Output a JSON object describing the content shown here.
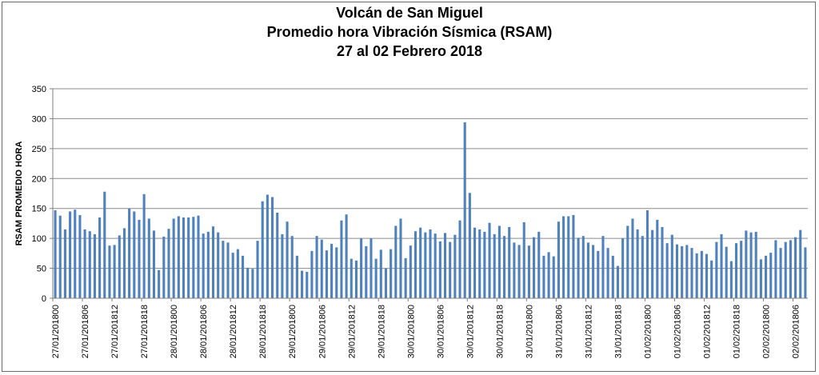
{
  "chart_data": {
    "type": "bar",
    "title": [
      "Volcán de San Miguel",
      "Promedio hora Vibración Sísmica (RSAM)",
      "27 al 02 Febrero  2018"
    ],
    "xlabel": "",
    "ylabel": "RSAM PROMEDIO HORA",
    "ylim": [
      0,
      350
    ],
    "yticks": [
      0,
      50,
      100,
      150,
      200,
      250,
      300,
      350
    ],
    "grid": true,
    "bar_color": "#4f81bd",
    "grid_color": "#8c8c8c",
    "xtick_labels": [
      "27/01/201800",
      "27/01/201806",
      "27/01/201812",
      "27/01/201818",
      "28/01/201800",
      "28/01/201806",
      "28/01/201812",
      "28/01/201818",
      "29/01/201800",
      "29/01/201806",
      "29/01/201812",
      "29/01/201818",
      "30/01/201800",
      "30/01/201806",
      "30/01/201812",
      "30/01/201818",
      "31/01/201800",
      "31/01/201806",
      "31/01/201812",
      "31/01/201818",
      "01/02/201800",
      "01/02/201806",
      "01/02/201812",
      "01/02/201818",
      "02/02/201800",
      "02/02/201806"
    ],
    "values": [
      147,
      138,
      115,
      145,
      148,
      139,
      115,
      112,
      107,
      135,
      178,
      88,
      89,
      105,
      117,
      150,
      145,
      131,
      174,
      133,
      113,
      47,
      103,
      116,
      133,
      137,
      135,
      135,
      136,
      138,
      108,
      111,
      120,
      110,
      96,
      93,
      76,
      82,
      71,
      51,
      49,
      96,
      162,
      173,
      169,
      143,
      107,
      128,
      104,
      71,
      46,
      44,
      79,
      104,
      98,
      80,
      91,
      85,
      130,
      140,
      66,
      63,
      100,
      87,
      100,
      66,
      81,
      50,
      82,
      121,
      133,
      67,
      88,
      112,
      118,
      110,
      115,
      108,
      95,
      109,
      94,
      106,
      130,
      294,
      176,
      118,
      115,
      111,
      126,
      107,
      121,
      104,
      119,
      93,
      89,
      127,
      88,
      102,
      111,
      71,
      77,
      70,
      128,
      137,
      137,
      139,
      101,
      104,
      93,
      89,
      79,
      104,
      84,
      71,
      54,
      100,
      121,
      133,
      115,
      104,
      147,
      114,
      131,
      119,
      92,
      106,
      90,
      87,
      89,
      84,
      75,
      79,
      74,
      63,
      94,
      107,
      86,
      62,
      92,
      96,
      113,
      110,
      111,
      65,
      71,
      76,
      97,
      84,
      94,
      97,
      102,
      114,
      85
    ]
  }
}
